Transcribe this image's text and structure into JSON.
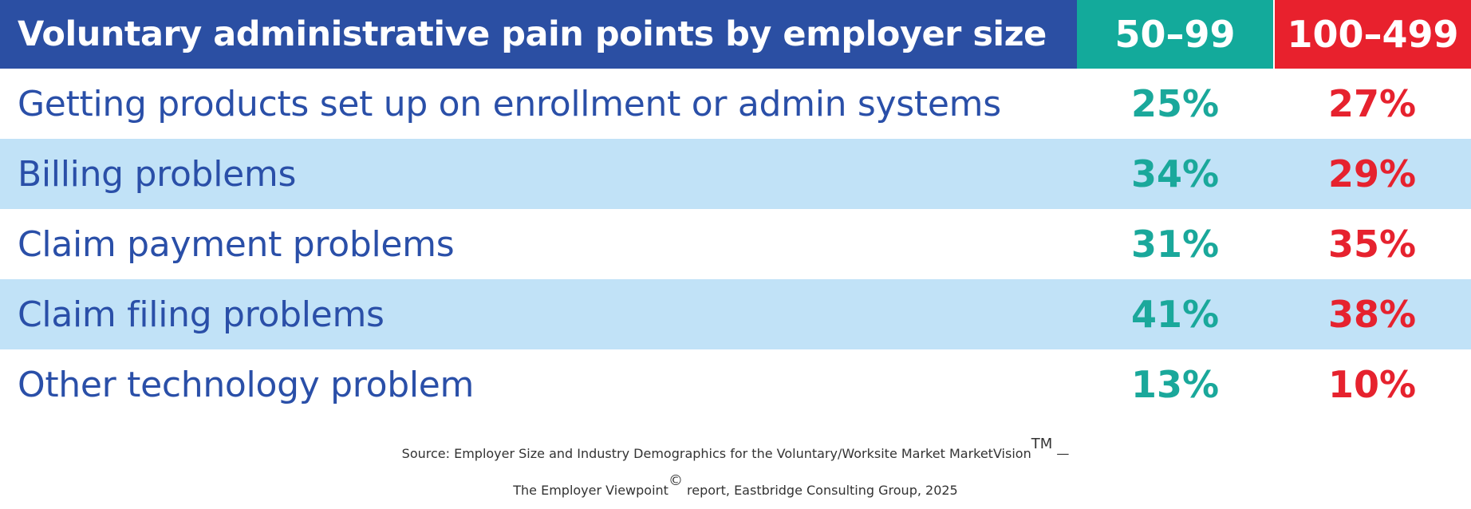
{
  "chart_data": {
    "type": "table",
    "title": "Voluntary administrative pain points by employer size",
    "columns": [
      "50–99",
      "100–499"
    ],
    "rows": [
      {
        "label": "Getting products set up on enrollment or admin systems",
        "values": [
          "25%",
          "27%"
        ]
      },
      {
        "label": "Billing problems",
        "values": [
          "34%",
          "29%"
        ]
      },
      {
        "label": "Claim payment problems",
        "values": [
          "31%",
          "35%"
        ]
      },
      {
        "label": "Claim filing problems",
        "values": [
          "41%",
          "38%"
        ]
      },
      {
        "label": "Other technology problem",
        "values": [
          "13%",
          "10%"
        ]
      }
    ],
    "colors": {
      "title_bg": "#2b4fa3",
      "col1": "#13aa9b",
      "col2": "#e8212d",
      "label_text": "#2a4fa8",
      "row_shade": "#c1e2f7"
    }
  },
  "source": {
    "line1_prefix": "Source: Employer Size and Industry Demographics for the Voluntary/Worksite Market MarketVision",
    "line1_tm": "TM",
    "line1_suffix": " —",
    "line2_prefix": "The Employer Viewpoint",
    "line2_copy": "©",
    "line2_suffix": " report, Eastbridge Consulting Group, 2025"
  }
}
